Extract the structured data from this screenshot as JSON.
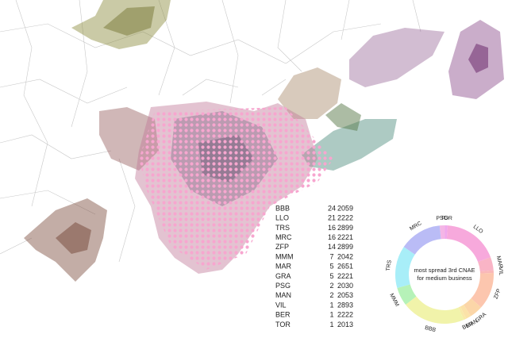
{
  "table": {
    "rows": [
      [
        "BBB",
        24,
        2059
      ],
      [
        "LLO",
        21,
        2222
      ],
      [
        "TRS",
        16,
        2899
      ],
      [
        "MRC",
        16,
        2221
      ],
      [
        "ZFP",
        14,
        2899
      ],
      [
        "MMM",
        7,
        2042
      ],
      [
        "MAR",
        5,
        2651
      ],
      [
        "GRA",
        5,
        2221
      ],
      [
        "PSG",
        2,
        2030
      ],
      [
        "MAN",
        2,
        2053
      ],
      [
        "VIL",
        1,
        2893
      ],
      [
        "BER",
        1,
        2222
      ],
      [
        "TOR",
        1,
        2013
      ]
    ]
  },
  "donut": {
    "center_text": [
      "most spread 3rd CNAE",
      "for medium business"
    ],
    "segments": [
      {
        "label": "PSG",
        "value": 2,
        "color": "#f4b6e6"
      },
      {
        "label": "TOR",
        "value": 1,
        "color": "#f0a8ec"
      },
      {
        "label": "LLO",
        "value": 21,
        "color": "#f7a9dc"
      },
      {
        "label": "MAR",
        "value": 5,
        "color": "#f9b4c6"
      },
      {
        "label": "VIL",
        "value": 1,
        "color": "#fab8b8"
      },
      {
        "label": "ZFP",
        "value": 14,
        "color": "#fcc6ae"
      },
      {
        "label": "GRA",
        "value": 5,
        "color": "#fbd6a8"
      },
      {
        "label": "MAN",
        "value": 2,
        "color": "#fbe2a8"
      },
      {
        "label": "BER",
        "value": 1,
        "color": "#f8eaa8"
      },
      {
        "label": "BBB",
        "value": 24,
        "color": "#f1f3aa"
      },
      {
        "label": "MMM",
        "value": 7,
        "color": "#b6f2b8"
      },
      {
        "label": "TRS",
        "value": 16,
        "color": "#a8eef8"
      },
      {
        "label": "MRC",
        "value": 16,
        "color": "#babcf6"
      }
    ]
  }
}
